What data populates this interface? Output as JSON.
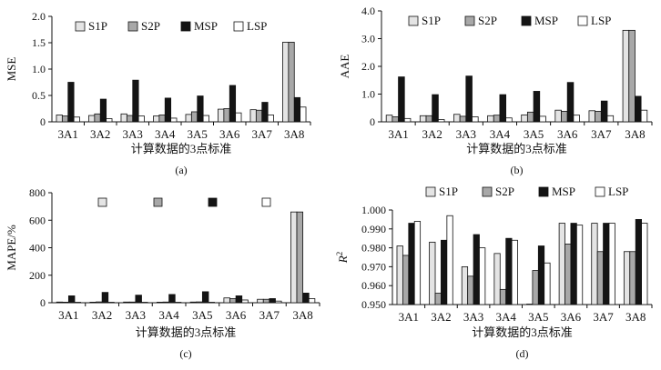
{
  "colors": {
    "S1P": "#e4e4e4",
    "S2P": "#a8a8a8",
    "MSP": "#141414",
    "LSP": "#ffffff",
    "stroke": "#111111"
  },
  "chart_data": [
    {
      "type": "bar",
      "panel": "(a)",
      "xlabel": "计算数据的3点标准",
      "ylabel": "MSE",
      "ylim": [
        0,
        2.0
      ],
      "yticks": [
        "0",
        "0.5",
        "1.0",
        "1.5",
        "2.0"
      ],
      "legend_position": "top",
      "categories": [
        "3A1",
        "3A2",
        "3A3",
        "3A4",
        "3A5",
        "3A6",
        "3A7",
        "3A8"
      ],
      "series": [
        {
          "name": "S1P",
          "values": [
            0.13,
            0.12,
            0.15,
            0.11,
            0.14,
            0.24,
            0.23,
            1.51
          ]
        },
        {
          "name": "S2P",
          "values": [
            0.11,
            0.15,
            0.12,
            0.13,
            0.19,
            0.25,
            0.22,
            1.51
          ]
        },
        {
          "name": "MSP",
          "values": [
            0.75,
            0.43,
            0.79,
            0.45,
            0.49,
            0.69,
            0.37,
            0.46
          ]
        },
        {
          "name": "LSP",
          "values": [
            0.09,
            0.06,
            0.11,
            0.07,
            0.12,
            0.17,
            0.13,
            0.28
          ]
        }
      ]
    },
    {
      "type": "bar",
      "panel": "(b)",
      "xlabel": "计算数据的3点标准",
      "ylabel": "AAE",
      "ylim": [
        0,
        4.0
      ],
      "yticks": [
        "0",
        "1.0",
        "2.0",
        "3.0",
        "4.0"
      ],
      "legend_position": "top",
      "categories": [
        "3A1",
        "3A2",
        "3A3",
        "3A4",
        "3A5",
        "3A6",
        "3A7",
        "3A8"
      ],
      "series": [
        {
          "name": "S1P",
          "values": [
            0.24,
            0.22,
            0.27,
            0.22,
            0.25,
            0.42,
            0.4,
            3.3
          ]
        },
        {
          "name": "S2P",
          "values": [
            0.18,
            0.22,
            0.2,
            0.24,
            0.35,
            0.38,
            0.38,
            3.3
          ]
        },
        {
          "name": "MSP",
          "values": [
            1.62,
            0.98,
            1.65,
            0.98,
            1.1,
            1.42,
            0.75,
            0.92
          ]
        },
        {
          "name": "LSP",
          "values": [
            0.12,
            0.08,
            0.18,
            0.14,
            0.2,
            0.24,
            0.22,
            0.42
          ]
        }
      ]
    },
    {
      "type": "bar",
      "panel": "(c)",
      "xlabel": "计算数据的3点标准",
      "ylabel": "MAPE/%",
      "ylim": [
        0,
        800
      ],
      "yticks": [
        "0",
        "200",
        "400",
        "600",
        "800"
      ],
      "legend_position": "top",
      "categories": [
        "3A1",
        "3A2",
        "3A3",
        "3A4",
        "3A5",
        "3A6",
        "3A7",
        "3A8"
      ],
      "series": [
        {
          "name": "S1P",
          "values": [
            5,
            4,
            5,
            4,
            5,
            35,
            25,
            660
          ]
        },
        {
          "name": "S2P",
          "values": [
            4,
            6,
            5,
            5,
            6,
            30,
            25,
            660
          ]
        },
        {
          "name": "MSP",
          "values": [
            50,
            75,
            55,
            60,
            80,
            50,
            30,
            70
          ]
        },
        {
          "name": "LSP",
          "values": [
            3,
            3,
            3,
            3,
            3,
            20,
            12,
            30
          ]
        }
      ]
    },
    {
      "type": "bar",
      "panel": "(d)",
      "xlabel": "计算数据的3点标准",
      "ylabel": "R2",
      "ylim": [
        0.95,
        1.0
      ],
      "yticks": [
        "0.950",
        "0.960",
        "0.970",
        "0.980",
        "0.990",
        "1.000"
      ],
      "legend_position": "top",
      "categories": [
        "3A1",
        "3A2",
        "3A3",
        "3A4",
        "3A5",
        "3A6",
        "3A7",
        "3A8"
      ],
      "series": [
        {
          "name": "S1P",
          "values": [
            0.981,
            0.983,
            0.97,
            0.977,
            0.95,
            0.993,
            0.993,
            0.978
          ]
        },
        {
          "name": "S2P",
          "values": [
            0.976,
            0.956,
            0.965,
            0.958,
            0.968,
            0.982,
            0.978,
            0.978
          ]
        },
        {
          "name": "MSP",
          "values": [
            0.993,
            0.984,
            0.987,
            0.985,
            0.981,
            0.993,
            0.993,
            0.995
          ]
        },
        {
          "name": "LSP",
          "values": [
            0.994,
            0.997,
            0.98,
            0.984,
            0.972,
            0.992,
            0.993,
            0.993
          ]
        }
      ]
    }
  ]
}
